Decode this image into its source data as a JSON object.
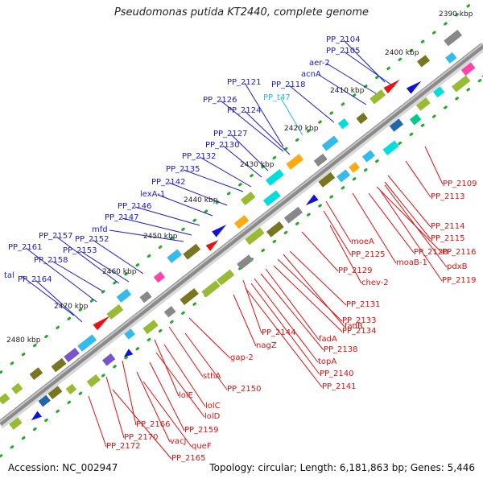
{
  "title": "Pseudomonas putida KT2440, complete genome",
  "footer": {
    "accession": "Accession: NC_002947",
    "summary": "Topology: circular; Length: 6,181,863 bp; Genes: 5,446"
  },
  "colors": {
    "backbone": "#888888",
    "forward_label": "#1a1acc",
    "reverse_label": "#dd1111",
    "highlight_label": "#22bbdd",
    "tick_dots": "#22aa22"
  },
  "ticks": [
    "2390 kbp",
    "2400 kbp",
    "2410 kbp",
    "2420 kbp",
    "2430 kbp",
    "2440 kbp",
    "2450 kbp",
    "2460 kbp",
    "2470 kbp",
    "2480 kbp"
  ],
  "forward_labels": [
    {
      "text": "PP_2104"
    },
    {
      "text": "PP_2105"
    },
    {
      "text": "aer-2"
    },
    {
      "text": "acnA"
    },
    {
      "text": "PP_2118"
    },
    {
      "text": "PP_2121"
    },
    {
      "text": "PP_t47",
      "highlight": true
    },
    {
      "text": "PP_2126"
    },
    {
      "text": "PP_2124"
    },
    {
      "text": "PP_2127"
    },
    {
      "text": "PP_2130"
    },
    {
      "text": "PP_2132"
    },
    {
      "text": "PP_2135"
    },
    {
      "text": "PP_2142"
    },
    {
      "text": "lexA-1"
    },
    {
      "text": "PP_2146"
    },
    {
      "text": "PP_2147"
    },
    {
      "text": "mfd"
    },
    {
      "text": "PP_2157"
    },
    {
      "text": "PP_2152"
    },
    {
      "text": "PP_2161"
    },
    {
      "text": "PP_2153"
    },
    {
      "text": "PP_2158"
    },
    {
      "text": "tal"
    },
    {
      "text": "PP_2164"
    }
  ],
  "reverse_labels": [
    {
      "text": "PP_2109"
    },
    {
      "text": "PP_2113"
    },
    {
      "text": "PP_2114"
    },
    {
      "text": "PP_2115"
    },
    {
      "text": "PP_2116"
    },
    {
      "text": "moeA"
    },
    {
      "text": "PP_2120"
    },
    {
      "text": "pdxB"
    },
    {
      "text": "PP_2125"
    },
    {
      "text": "moaB-1"
    },
    {
      "text": "PP_2119"
    },
    {
      "text": "PP_2129"
    },
    {
      "text": "chev-2"
    },
    {
      "text": "PP_2131"
    },
    {
      "text": "PP_2133"
    },
    {
      "text": "fadB"
    },
    {
      "text": "PP_2134"
    },
    {
      "text": "PP_2144"
    },
    {
      "text": "fadA"
    },
    {
      "text": "nagZ"
    },
    {
      "text": "PP_2138"
    },
    {
      "text": "topA"
    },
    {
      "text": "gap-2"
    },
    {
      "text": "PP_2140"
    },
    {
      "text": "PP_2141"
    },
    {
      "text": "sthA"
    },
    {
      "text": "PP_2150"
    },
    {
      "text": "lolE"
    },
    {
      "text": "lolC"
    },
    {
      "text": "lolD"
    },
    {
      "text": "PP_2166"
    },
    {
      "text": "PP_2159"
    },
    {
      "text": "PP_2170"
    },
    {
      "text": "vacJ"
    },
    {
      "text": "queF"
    },
    {
      "text": "PP_2172"
    },
    {
      "text": "PP_2165"
    }
  ]
}
